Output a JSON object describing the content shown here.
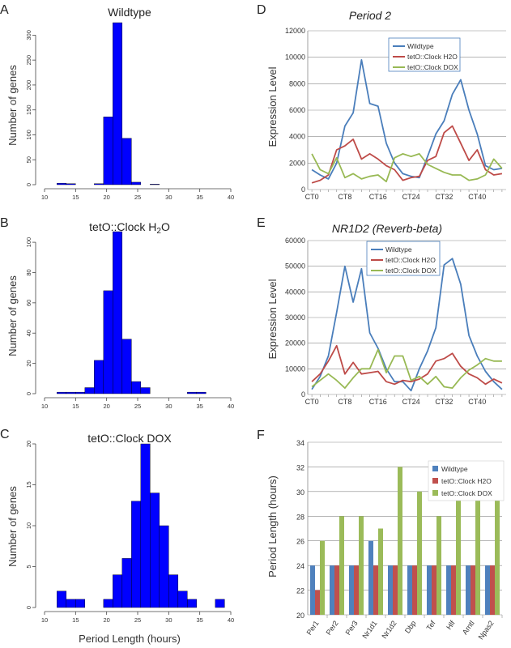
{
  "panel_labels": [
    "A",
    "B",
    "C",
    "D",
    "E",
    "F"
  ],
  "chart_data": [
    {
      "type": "bar",
      "title": "Wildtype",
      "xlabel": "",
      "ylabel": "Number of genes",
      "xlim": [
        10,
        40
      ],
      "ylim": [
        0,
        325
      ],
      "xticks": [
        "10",
        "15",
        "20",
        "25",
        "30",
        "35",
        "40"
      ],
      "yticks": [
        "0",
        "50",
        "100",
        "150",
        "200",
        "250",
        "300"
      ],
      "bin_width": 1.5,
      "bins_start": [
        12,
        13.5,
        15,
        16.5,
        18,
        19.5,
        21,
        22.5,
        24,
        25.5,
        27,
        28.5,
        30
      ],
      "values": [
        3,
        2,
        0,
        0,
        2,
        136,
        325,
        93,
        5,
        0,
        1,
        0,
        0
      ],
      "color": "#0000ff"
    },
    {
      "type": "bar",
      "title": "tetO::Clock H2O",
      "title_main": "tetO::Clock H",
      "title_sub": "2",
      "title_tail": "O",
      "xlabel": "",
      "ylabel": "Number of genes",
      "xlim": [
        10,
        40
      ],
      "ylim": [
        0,
        107
      ],
      "xticks": [
        "10",
        "15",
        "20",
        "25",
        "30",
        "35",
        "40"
      ],
      "yticks": [
        "0",
        "20",
        "40",
        "60",
        "80",
        "100"
      ],
      "bin_width": 1.5,
      "bins_start": [
        12,
        13.5,
        15,
        16.5,
        18,
        19.5,
        21,
        22.5,
        24,
        25.5,
        27,
        28.5,
        30,
        31.5,
        33,
        34.5,
        36
      ],
      "values": [
        1,
        1,
        1,
        4,
        22,
        68,
        107,
        36,
        8,
        4,
        0,
        0,
        0,
        0,
        1,
        1,
        0
      ],
      "color": "#0000ff"
    },
    {
      "type": "bar",
      "title": "tetO::Clock DOX",
      "xlabel": "Period Length (hours)",
      "ylabel": "Number of genes",
      "xlim": [
        10,
        40
      ],
      "ylim": [
        0,
        20
      ],
      "xticks": [
        "10",
        "15",
        "20",
        "25",
        "30",
        "35",
        "40"
      ],
      "yticks": [
        "0",
        "5",
        "10",
        "15",
        "20"
      ],
      "bin_width": 1.5,
      "bins_start": [
        12,
        13.5,
        15,
        16.5,
        18,
        19.5,
        21,
        22.5,
        24,
        25.5,
        27,
        28.5,
        30,
        31.5,
        33,
        34.5,
        36,
        37.5
      ],
      "values": [
        2,
        1,
        1,
        0,
        0,
        1,
        4,
        6,
        13,
        20,
        14,
        10,
        4,
        2,
        1,
        0,
        0,
        1
      ],
      "color": "#0000ff"
    },
    {
      "type": "line",
      "title": "Period 2",
      "xlabel": "",
      "ylabel": "Expression Level",
      "x_tick_labels": [
        "CT0",
        "CT8",
        "CT16",
        "CT24",
        "CT32",
        "CT40"
      ],
      "x_tick_positions": [
        0,
        8,
        16,
        24,
        32,
        40
      ],
      "xlim": [
        -1,
        47
      ],
      "ylim": [
        0,
        12000
      ],
      "yticks": [
        "0",
        "2000",
        "4000",
        "6000",
        "8000",
        "10000",
        "12000"
      ],
      "x": [
        0,
        2,
        4,
        6,
        8,
        10,
        12,
        14,
        16,
        18,
        20,
        22,
        24,
        26,
        28,
        30,
        32,
        34,
        36,
        38,
        40,
        42,
        44,
        46
      ],
      "series": [
        {
          "name": "Wildtype",
          "color": "#4a7ebb",
          "values": [
            1500,
            1100,
            800,
            2000,
            4800,
            5800,
            9800,
            6500,
            6300,
            3500,
            2000,
            1200,
            1000,
            900,
            2500,
            4200,
            5200,
            7200,
            8300,
            6000,
            4200,
            1800,
            1500,
            1600
          ]
        },
        {
          "name": "tetO::Clock H2O",
          "color": "#be4b48",
          "values": [
            500,
            700,
            1100,
            3000,
            3300,
            3800,
            2300,
            2700,
            2300,
            1800,
            1500,
            700,
            900,
            1000,
            2200,
            2500,
            4300,
            4800,
            3500,
            2200,
            3000,
            1500,
            1100,
            1200
          ]
        },
        {
          "name": "tetO::Clock DOX",
          "color": "#98b954",
          "values": [
            2700,
            1500,
            1200,
            2400,
            900,
            1200,
            800,
            1000,
            1100,
            600,
            2400,
            2700,
            2500,
            2700,
            1900,
            1600,
            1300,
            1100,
            1100,
            700,
            800,
            1100,
            2300,
            1600
          ]
        }
      ],
      "legend": "top-right"
    },
    {
      "type": "line",
      "title": "NR1D2 (Reverb-beta)",
      "xlabel": "",
      "ylabel": "Expression Level",
      "x_tick_labels": [
        "CT0",
        "CT8",
        "CT16",
        "CT24",
        "CT32",
        "CT40"
      ],
      "x_tick_positions": [
        0,
        8,
        16,
        24,
        32,
        40
      ],
      "xlim": [
        -1,
        47
      ],
      "ylim": [
        0,
        60000
      ],
      "yticks": [
        "0",
        "10000",
        "20000",
        "30000",
        "40000",
        "50000",
        "60000"
      ],
      "x": [
        0,
        2,
        4,
        6,
        8,
        10,
        12,
        14,
        16,
        18,
        20,
        22,
        24,
        26,
        28,
        30,
        32,
        34,
        36,
        38,
        40,
        42,
        44,
        46
      ],
      "series": [
        {
          "name": "Wildtype",
          "color": "#4a7ebb",
          "values": [
            2000,
            7000,
            15000,
            32000,
            50000,
            36000,
            49000,
            24000,
            18000,
            10000,
            5000,
            5000,
            1500,
            10000,
            17000,
            26000,
            50500,
            53000,
            43000,
            23000,
            15000,
            9000,
            5000,
            2000
          ]
        },
        {
          "name": "tetO::Clock H2O",
          "color": "#be4b48",
          "values": [
            5000,
            8000,
            13000,
            19000,
            8000,
            12500,
            8000,
            8500,
            9000,
            5000,
            4000,
            5500,
            5000,
            6000,
            8000,
            13000,
            14000,
            16000,
            11000,
            8000,
            6500,
            4000,
            6000,
            4500
          ]
        },
        {
          "name": "tetO::Clock DOX",
          "color": "#98b954",
          "values": [
            3000,
            5500,
            8000,
            5500,
            2500,
            6500,
            10000,
            10000,
            17500,
            8500,
            15000,
            15000,
            5500,
            7000,
            4000,
            7000,
            3000,
            2500,
            6500,
            9500,
            11500,
            14000,
            13000,
            13000
          ]
        }
      ],
      "legend": "top-left"
    },
    {
      "type": "bar",
      "title": "",
      "xlabel": "",
      "ylabel": "Period Length (hours)",
      "categories": [
        "Per1",
        "Per2",
        "Per3",
        "Nr1d1",
        "Nr1d2",
        "Dbp",
        "Tef",
        "Hlf",
        "Arntl",
        "Npas2"
      ],
      "ylim": [
        20,
        34
      ],
      "yticks": [
        "20",
        "22",
        "24",
        "26",
        "28",
        "30",
        "32",
        "34"
      ],
      "series": [
        {
          "name": "Wildtype",
          "color": "#4f81bd",
          "values": [
            24,
            24,
            24,
            26,
            24,
            24,
            24,
            24,
            24,
            24
          ]
        },
        {
          "name": "tetO::Clock H2O",
          "color": "#c0504d",
          "values": [
            22,
            24,
            24,
            24,
            24,
            24,
            24,
            24,
            24,
            24
          ]
        },
        {
          "name": "tetO::Clock DOX",
          "color": "#9bbb59",
          "values": [
            26,
            28,
            28,
            27,
            32,
            30,
            28,
            30,
            30,
            30
          ]
        }
      ],
      "legend": "top-right"
    }
  ]
}
